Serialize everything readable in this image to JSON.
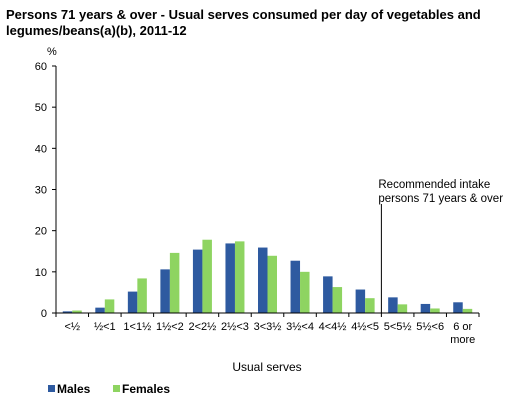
{
  "chart_data": {
    "type": "bar",
    "title": "Persons 71 years & over - Usual serves consumed per day of vegetables and legumes/beans(a)(b), 2011-12",
    "ylabel": "%",
    "xlabel": "Usual serves",
    "ylim": [
      0,
      60
    ],
    "yticks": [
      0,
      10,
      20,
      30,
      40,
      50,
      60
    ],
    "grid": false,
    "legend": "bottom-left",
    "categories": [
      "<½",
      "½<1",
      "1<1½",
      "1½<2",
      "2<2½",
      "2½<3",
      "3<3½",
      "3½<4",
      "4<4½",
      "4½<5",
      "5<5½",
      "5½<6",
      "6 or more"
    ],
    "series": [
      {
        "name": "Males",
        "color": "#2e5aa0",
        "values": [
          0.4,
          1.3,
          5.2,
          10.6,
          15.4,
          16.9,
          15.9,
          12.7,
          8.9,
          5.7,
          3.8,
          2.2,
          2.6
        ]
      },
      {
        "name": "Females",
        "color": "#8ed461",
        "values": [
          0.6,
          3.3,
          8.4,
          14.6,
          17.8,
          17.4,
          13.9,
          10.0,
          6.3,
          3.6,
          2.1,
          1.1,
          1.0
        ]
      }
    ],
    "annotation": {
      "text": [
        "Recommended intake",
        "persons 71 years & over"
      ],
      "after_category_index": 9
    }
  }
}
